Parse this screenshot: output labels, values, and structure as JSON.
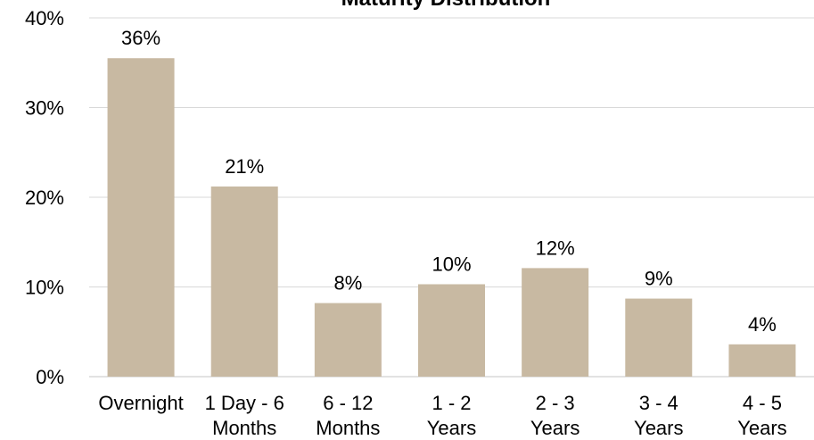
{
  "chart_data": {
    "type": "bar",
    "title": "Maturity Distribution",
    "categories": [
      [
        "Overnight"
      ],
      [
        "1 Day - 6",
        "Months"
      ],
      [
        "6 - 12",
        "Months"
      ],
      [
        "1 - 2",
        "Years"
      ],
      [
        "2 - 3",
        "Years"
      ],
      [
        "3 - 4",
        "Years"
      ],
      [
        "4 - 5",
        "Years"
      ]
    ],
    "values": [
      35.5,
      21.2,
      8.2,
      10.3,
      12.1,
      8.7,
      3.6
    ],
    "data_labels": [
      "36%",
      "21%",
      "8%",
      "10%",
      "12%",
      "9%",
      "4%"
    ],
    "ylim": [
      0,
      40
    ],
    "yticks": [
      0,
      10,
      20,
      30,
      40
    ],
    "ytick_labels": [
      "0%",
      "10%",
      "20%",
      "30%",
      "40%"
    ],
    "xlabel": "",
    "ylabel": "",
    "grid": true,
    "legend": "none",
    "colors": {
      "bar": "#C8B9A2",
      "grid": "#D9D9D9",
      "text": "#000000"
    }
  }
}
